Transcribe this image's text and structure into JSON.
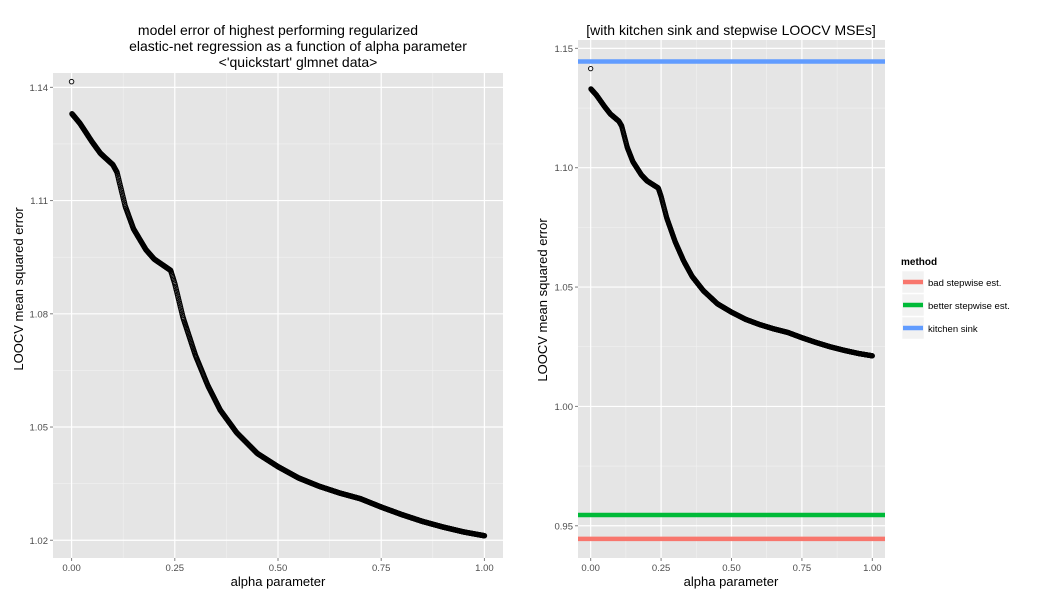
{
  "chart_data": [
    {
      "type": "scatter",
      "title_lines": [
        "model error of highest performing regularized",
        "elastic-net regression as a function of alpha parameter",
        "<'quickstart' glmnet data>"
      ],
      "xlabel": "alpha parameter",
      "ylabel": "LOOCV mean squared error",
      "xlim": [
        -0.045,
        1.045
      ],
      "ylim": [
        1.0153,
        1.1438
      ],
      "x_ticks": [
        0.0,
        0.25,
        0.5,
        0.75,
        1.0
      ],
      "x_tick_labels": [
        "0.00",
        "0.25",
        "0.50",
        "0.75",
        "1.00"
      ],
      "y_ticks": [
        1.02,
        1.05,
        1.08,
        1.11,
        1.14
      ],
      "y_tick_labels": [
        "1.02",
        "1.05",
        "1.08",
        "1.11",
        "1.14"
      ],
      "background": "#e5e5e5",
      "grid": true,
      "series": [
        {
          "marker": "open-circle",
          "x": [
            0.0,
            0.001,
            0.02,
            0.05,
            0.07,
            0.1,
            0.11,
            0.13,
            0.15,
            0.18,
            0.2,
            0.22,
            0.24,
            0.25,
            0.27,
            0.3,
            0.33,
            0.36,
            0.4,
            0.45,
            0.5,
            0.55,
            0.6,
            0.65,
            0.7,
            0.75,
            0.8,
            0.85,
            0.9,
            0.95,
            1.0
          ],
          "y": [
            1.1415,
            1.133,
            1.1305,
            1.1255,
            1.1225,
            1.1195,
            1.1175,
            1.1085,
            1.1025,
            1.097,
            1.0945,
            1.093,
            1.0915,
            1.088,
            1.079,
            1.069,
            1.061,
            1.0545,
            1.0485,
            1.043,
            1.0395,
            1.0365,
            1.0343,
            1.0325,
            1.031,
            1.0288,
            1.0268,
            1.025,
            1.0235,
            1.0222,
            1.0212
          ]
        }
      ]
    },
    {
      "type": "scatter",
      "title": "[with kitchen sink and stepwise LOOCV MSEs]",
      "xlabel": "alpha parameter",
      "ylabel": "LOOCV mean squared error",
      "xlim": [
        -0.045,
        1.045
      ],
      "ylim": [
        0.9365,
        1.1535
      ],
      "x_ticks": [
        0.0,
        0.25,
        0.5,
        0.75,
        1.0
      ],
      "x_tick_labels": [
        "0.00",
        "0.25",
        "0.50",
        "0.75",
        "1.00"
      ],
      "y_ticks": [
        0.95,
        1.0,
        1.05,
        1.1,
        1.15
      ],
      "y_tick_labels": [
        "0.95",
        "1.00",
        "1.05",
        "1.10",
        "1.15"
      ],
      "background": "#e5e5e5",
      "grid": true,
      "series": [
        {
          "marker": "open-circle",
          "x": [
            0.0,
            0.001,
            0.02,
            0.05,
            0.07,
            0.1,
            0.11,
            0.13,
            0.15,
            0.18,
            0.2,
            0.22,
            0.24,
            0.25,
            0.27,
            0.3,
            0.33,
            0.36,
            0.4,
            0.45,
            0.5,
            0.55,
            0.6,
            0.65,
            0.7,
            0.75,
            0.8,
            0.85,
            0.9,
            0.95,
            1.0
          ],
          "y": [
            1.1415,
            1.133,
            1.1305,
            1.1255,
            1.1225,
            1.1195,
            1.1175,
            1.1085,
            1.1025,
            1.097,
            1.0945,
            1.093,
            1.0915,
            1.088,
            1.079,
            1.069,
            1.061,
            1.0545,
            1.0485,
            1.043,
            1.0395,
            1.0365,
            1.0343,
            1.0325,
            1.031,
            1.0288,
            1.0268,
            1.025,
            1.0235,
            1.0222,
            1.0212
          ]
        }
      ],
      "hlines": [
        {
          "name": "bad stepwise est.",
          "y": 0.9445,
          "color": "#f8766d"
        },
        {
          "name": "better stepwise est.",
          "y": 0.9545,
          "color": "#00ba38"
        },
        {
          "name": "kitchen sink",
          "y": 1.1445,
          "color": "#619cff"
        }
      ],
      "legend": {
        "title": "method",
        "position": "right",
        "entries": [
          "bad stepwise est.",
          "better stepwise est.",
          "kitchen sink"
        ]
      }
    }
  ]
}
